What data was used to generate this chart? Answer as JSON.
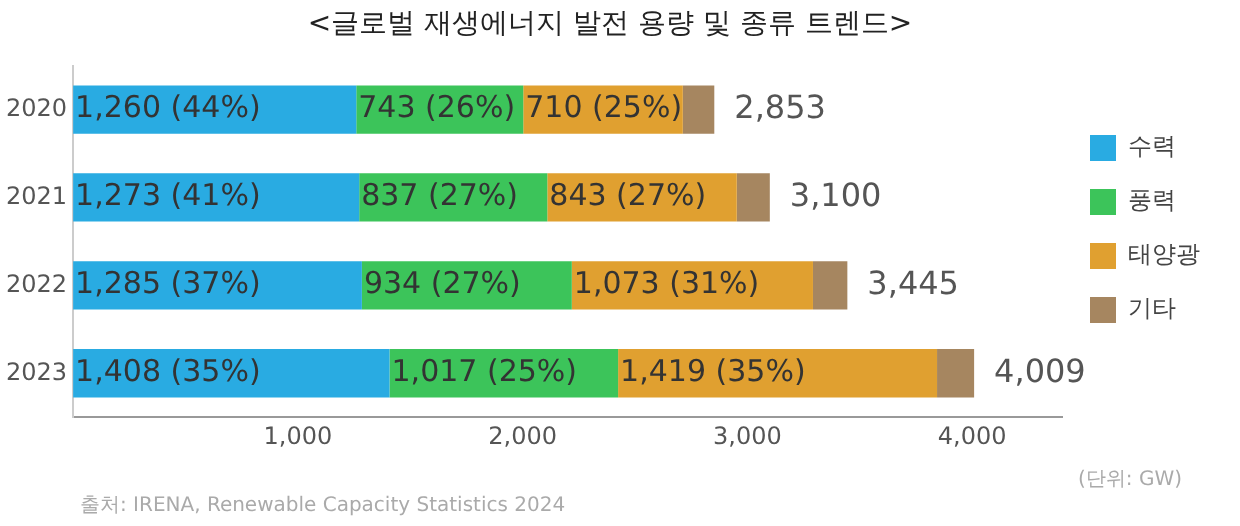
{
  "chart_data": {
    "type": "bar",
    "orientation": "horizontal",
    "stacked": true,
    "title": "<글로벌 재생에너지 발전 용량 및 종류 트렌드>",
    "categories": [
      "2020",
      "2021",
      "2022",
      "2023"
    ],
    "series": [
      {
        "name": "수력",
        "color": "#29abe2",
        "values": [
          1260,
          1273,
          1285,
          1408
        ],
        "value_labels": [
          "1,260 (44%)",
          "1,273 (41%)",
          "1,285 (37%)",
          "1,408 (35%)"
        ]
      },
      {
        "name": "풍력",
        "color": "#3cc45a",
        "values": [
          743,
          837,
          934,
          1017
        ],
        "value_labels": [
          "743 (26%)",
          "837 (27%)",
          "934 (27%)",
          "1,017 (25%)"
        ]
      },
      {
        "name": "태양광",
        "color": "#e0a030",
        "values": [
          710,
          843,
          1073,
          1419
        ],
        "value_labels": [
          "710 (25%)",
          "843 (27%)",
          "1,073 (31%)",
          "1,419 (35%)"
        ]
      },
      {
        "name": "기타",
        "color": "#a68660",
        "values": [
          140,
          147,
          153,
          165
        ]
      }
    ],
    "totals": [
      "2,853",
      "3,100",
      "3,445",
      "4,009"
    ],
    "xlim": [
      0,
      4400
    ],
    "xticks": [
      {
        "value": 1000,
        "label": "1,000"
      },
      {
        "value": 2000,
        "label": "2,000"
      },
      {
        "value": 3000,
        "label": "3,000"
      },
      {
        "value": 4000,
        "label": "4,000"
      }
    ],
    "grid": false,
    "legend": "right",
    "annotations": [
      "(단위: GW)",
      "출처: IRENA, Renewable Capacity Statistics 2024"
    ]
  }
}
